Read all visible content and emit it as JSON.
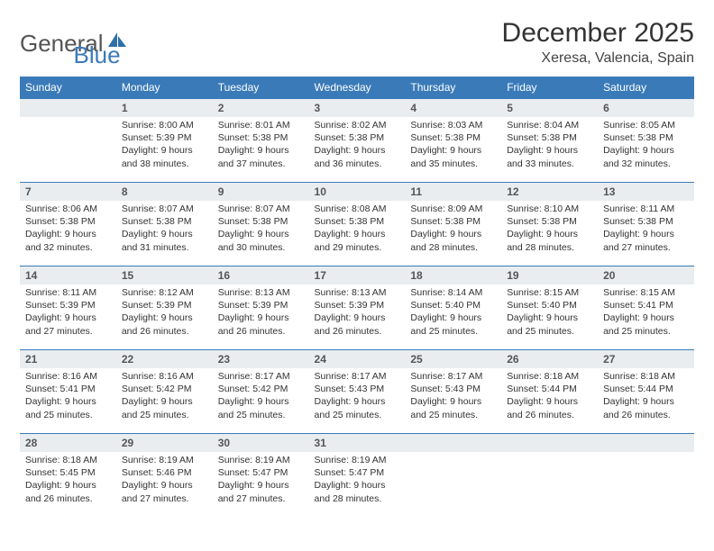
{
  "brand": {
    "part1": "General",
    "part2": "Blue"
  },
  "title": "December 2025",
  "location": "Xeresa, Valencia, Spain",
  "colors": {
    "accent": "#3a7ab8",
    "header_bg": "#3a7ab8",
    "header_text": "#ffffff",
    "daynum_bg": "#e9edf0",
    "divider": "#3a7ab8",
    "text": "#333333"
  },
  "dow": [
    "Sunday",
    "Monday",
    "Tuesday",
    "Wednesday",
    "Thursday",
    "Friday",
    "Saturday"
  ],
  "weeks": [
    {
      "nums": [
        "",
        "1",
        "2",
        "3",
        "4",
        "5",
        "6"
      ],
      "cells": [
        {
          "empty": true
        },
        {
          "sunrise": "Sunrise: 8:00 AM",
          "sunset": "Sunset: 5:39 PM",
          "day1": "Daylight: 9 hours",
          "day2": "and 38 minutes."
        },
        {
          "sunrise": "Sunrise: 8:01 AM",
          "sunset": "Sunset: 5:38 PM",
          "day1": "Daylight: 9 hours",
          "day2": "and 37 minutes."
        },
        {
          "sunrise": "Sunrise: 8:02 AM",
          "sunset": "Sunset: 5:38 PM",
          "day1": "Daylight: 9 hours",
          "day2": "and 36 minutes."
        },
        {
          "sunrise": "Sunrise: 8:03 AM",
          "sunset": "Sunset: 5:38 PM",
          "day1": "Daylight: 9 hours",
          "day2": "and 35 minutes."
        },
        {
          "sunrise": "Sunrise: 8:04 AM",
          "sunset": "Sunset: 5:38 PM",
          "day1": "Daylight: 9 hours",
          "day2": "and 33 minutes."
        },
        {
          "sunrise": "Sunrise: 8:05 AM",
          "sunset": "Sunset: 5:38 PM",
          "day1": "Daylight: 9 hours",
          "day2": "and 32 minutes."
        }
      ]
    },
    {
      "nums": [
        "7",
        "8",
        "9",
        "10",
        "11",
        "12",
        "13"
      ],
      "cells": [
        {
          "sunrise": "Sunrise: 8:06 AM",
          "sunset": "Sunset: 5:38 PM",
          "day1": "Daylight: 9 hours",
          "day2": "and 32 minutes."
        },
        {
          "sunrise": "Sunrise: 8:07 AM",
          "sunset": "Sunset: 5:38 PM",
          "day1": "Daylight: 9 hours",
          "day2": "and 31 minutes."
        },
        {
          "sunrise": "Sunrise: 8:07 AM",
          "sunset": "Sunset: 5:38 PM",
          "day1": "Daylight: 9 hours",
          "day2": "and 30 minutes."
        },
        {
          "sunrise": "Sunrise: 8:08 AM",
          "sunset": "Sunset: 5:38 PM",
          "day1": "Daylight: 9 hours",
          "day2": "and 29 minutes."
        },
        {
          "sunrise": "Sunrise: 8:09 AM",
          "sunset": "Sunset: 5:38 PM",
          "day1": "Daylight: 9 hours",
          "day2": "and 28 minutes."
        },
        {
          "sunrise": "Sunrise: 8:10 AM",
          "sunset": "Sunset: 5:38 PM",
          "day1": "Daylight: 9 hours",
          "day2": "and 28 minutes."
        },
        {
          "sunrise": "Sunrise: 8:11 AM",
          "sunset": "Sunset: 5:38 PM",
          "day1": "Daylight: 9 hours",
          "day2": "and 27 minutes."
        }
      ]
    },
    {
      "nums": [
        "14",
        "15",
        "16",
        "17",
        "18",
        "19",
        "20"
      ],
      "cells": [
        {
          "sunrise": "Sunrise: 8:11 AM",
          "sunset": "Sunset: 5:39 PM",
          "day1": "Daylight: 9 hours",
          "day2": "and 27 minutes."
        },
        {
          "sunrise": "Sunrise: 8:12 AM",
          "sunset": "Sunset: 5:39 PM",
          "day1": "Daylight: 9 hours",
          "day2": "and 26 minutes."
        },
        {
          "sunrise": "Sunrise: 8:13 AM",
          "sunset": "Sunset: 5:39 PM",
          "day1": "Daylight: 9 hours",
          "day2": "and 26 minutes."
        },
        {
          "sunrise": "Sunrise: 8:13 AM",
          "sunset": "Sunset: 5:39 PM",
          "day1": "Daylight: 9 hours",
          "day2": "and 26 minutes."
        },
        {
          "sunrise": "Sunrise: 8:14 AM",
          "sunset": "Sunset: 5:40 PM",
          "day1": "Daylight: 9 hours",
          "day2": "and 25 minutes."
        },
        {
          "sunrise": "Sunrise: 8:15 AM",
          "sunset": "Sunset: 5:40 PM",
          "day1": "Daylight: 9 hours",
          "day2": "and 25 minutes."
        },
        {
          "sunrise": "Sunrise: 8:15 AM",
          "sunset": "Sunset: 5:41 PM",
          "day1": "Daylight: 9 hours",
          "day2": "and 25 minutes."
        }
      ]
    },
    {
      "nums": [
        "21",
        "22",
        "23",
        "24",
        "25",
        "26",
        "27"
      ],
      "cells": [
        {
          "sunrise": "Sunrise: 8:16 AM",
          "sunset": "Sunset: 5:41 PM",
          "day1": "Daylight: 9 hours",
          "day2": "and 25 minutes."
        },
        {
          "sunrise": "Sunrise: 8:16 AM",
          "sunset": "Sunset: 5:42 PM",
          "day1": "Daylight: 9 hours",
          "day2": "and 25 minutes."
        },
        {
          "sunrise": "Sunrise: 8:17 AM",
          "sunset": "Sunset: 5:42 PM",
          "day1": "Daylight: 9 hours",
          "day2": "and 25 minutes."
        },
        {
          "sunrise": "Sunrise: 8:17 AM",
          "sunset": "Sunset: 5:43 PM",
          "day1": "Daylight: 9 hours",
          "day2": "and 25 minutes."
        },
        {
          "sunrise": "Sunrise: 8:17 AM",
          "sunset": "Sunset: 5:43 PM",
          "day1": "Daylight: 9 hours",
          "day2": "and 25 minutes."
        },
        {
          "sunrise": "Sunrise: 8:18 AM",
          "sunset": "Sunset: 5:44 PM",
          "day1": "Daylight: 9 hours",
          "day2": "and 26 minutes."
        },
        {
          "sunrise": "Sunrise: 8:18 AM",
          "sunset": "Sunset: 5:44 PM",
          "day1": "Daylight: 9 hours",
          "day2": "and 26 minutes."
        }
      ]
    },
    {
      "nums": [
        "28",
        "29",
        "30",
        "31",
        "",
        "",
        ""
      ],
      "cells": [
        {
          "sunrise": "Sunrise: 8:18 AM",
          "sunset": "Sunset: 5:45 PM",
          "day1": "Daylight: 9 hours",
          "day2": "and 26 minutes."
        },
        {
          "sunrise": "Sunrise: 8:19 AM",
          "sunset": "Sunset: 5:46 PM",
          "day1": "Daylight: 9 hours",
          "day2": "and 27 minutes."
        },
        {
          "sunrise": "Sunrise: 8:19 AM",
          "sunset": "Sunset: 5:47 PM",
          "day1": "Daylight: 9 hours",
          "day2": "and 27 minutes."
        },
        {
          "sunrise": "Sunrise: 8:19 AM",
          "sunset": "Sunset: 5:47 PM",
          "day1": "Daylight: 9 hours",
          "day2": "and 28 minutes."
        },
        {
          "empty": true
        },
        {
          "empty": true
        },
        {
          "empty": true
        }
      ]
    }
  ]
}
